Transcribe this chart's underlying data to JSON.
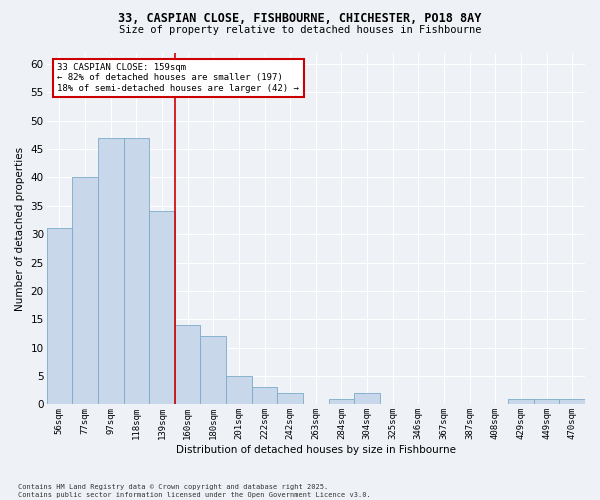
{
  "title_line1": "33, CASPIAN CLOSE, FISHBOURNE, CHICHESTER, PO18 8AY",
  "title_line2": "Size of property relative to detached houses in Fishbourne",
  "xlabel": "Distribution of detached houses by size in Fishbourne",
  "ylabel": "Number of detached properties",
  "categories": [
    "56sqm",
    "77sqm",
    "97sqm",
    "118sqm",
    "139sqm",
    "160sqm",
    "180sqm",
    "201sqm",
    "222sqm",
    "242sqm",
    "263sqm",
    "284sqm",
    "304sqm",
    "325sqm",
    "346sqm",
    "367sqm",
    "387sqm",
    "408sqm",
    "429sqm",
    "449sqm",
    "470sqm"
  ],
  "values": [
    31,
    40,
    47,
    47,
    34,
    14,
    12,
    5,
    3,
    2,
    0,
    1,
    2,
    0,
    0,
    0,
    0,
    0,
    1,
    1,
    1
  ],
  "bar_color": "#c8d8ea",
  "bar_edge_color": "#7aaac8",
  "vline_x": 4.5,
  "vline_color": "#cc0000",
  "ylim": [
    0,
    62
  ],
  "yticks": [
    0,
    5,
    10,
    15,
    20,
    25,
    30,
    35,
    40,
    45,
    50,
    55,
    60
  ],
  "annotation_title": "33 CASPIAN CLOSE: 159sqm",
  "annotation_line2": "← 82% of detached houses are smaller (197)",
  "annotation_line3": "18% of semi-detached houses are larger (42) →",
  "annotation_box_color": "#cc0000",
  "footnote_line1": "Contains HM Land Registry data © Crown copyright and database right 2025.",
  "footnote_line2": "Contains public sector information licensed under the Open Government Licence v3.0.",
  "background_color": "#eef2f7",
  "plot_background": "#eef2f7",
  "grid_color": "#ffffff"
}
